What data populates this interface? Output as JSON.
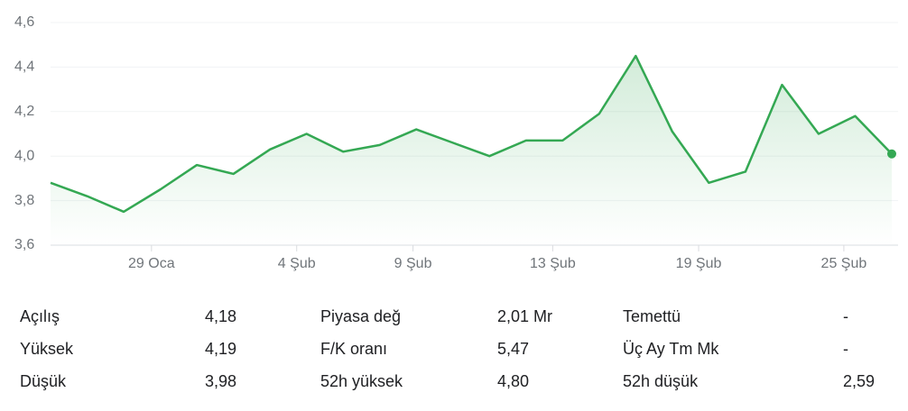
{
  "chart_data": {
    "type": "line",
    "values": [
      3.88,
      3.82,
      3.75,
      3.85,
      3.96,
      3.92,
      4.03,
      4.1,
      4.02,
      4.05,
      4.12,
      4.06,
      4.0,
      4.07,
      4.07,
      4.19,
      4.45,
      4.11,
      3.88,
      3.93,
      4.32,
      4.1,
      4.18,
      4.01
    ],
    "color": "#34a853",
    "xlim": [
      0,
      23
    ],
    "xticks": [
      {
        "value": 2.76,
        "label": "29 Oca"
      },
      {
        "value": 6.73,
        "label": "4 Şub"
      },
      {
        "value": 9.91,
        "label": "9 Şub"
      },
      {
        "value": 13.73,
        "label": "13 Şub"
      },
      {
        "value": 17.72,
        "label": "19 Şub"
      },
      {
        "value": 21.69,
        "label": "25 Şub"
      }
    ],
    "ylim": [
      3.6,
      4.6
    ],
    "yticks": [
      {
        "value": 3.6,
        "label": "3,6"
      },
      {
        "value": 3.8,
        "label": "3,8"
      },
      {
        "value": 4.0,
        "label": "4,0"
      },
      {
        "value": 4.2,
        "label": "4,2"
      },
      {
        "value": 4.4,
        "label": "4,4"
      },
      {
        "value": 4.6,
        "label": "4,6"
      }
    ],
    "grid": true
  },
  "stats": [
    [
      {
        "label": "Açılış",
        "value": "4,18"
      },
      {
        "label": "Yüksek",
        "value": "4,19"
      },
      {
        "label": "Düşük",
        "value": "3,98"
      }
    ],
    [
      {
        "label": "Piyasa değ",
        "value": "2,01 Mr"
      },
      {
        "label": "F/K oranı",
        "value": "5,47"
      },
      {
        "label": "52h yüksek",
        "value": "4,80"
      }
    ],
    [
      {
        "label": "Temettü",
        "value": "-"
      },
      {
        "label": "Üç Ay Tm Mk",
        "value": "-"
      },
      {
        "label": "52h düşük",
        "value": "2,59"
      }
    ]
  ]
}
